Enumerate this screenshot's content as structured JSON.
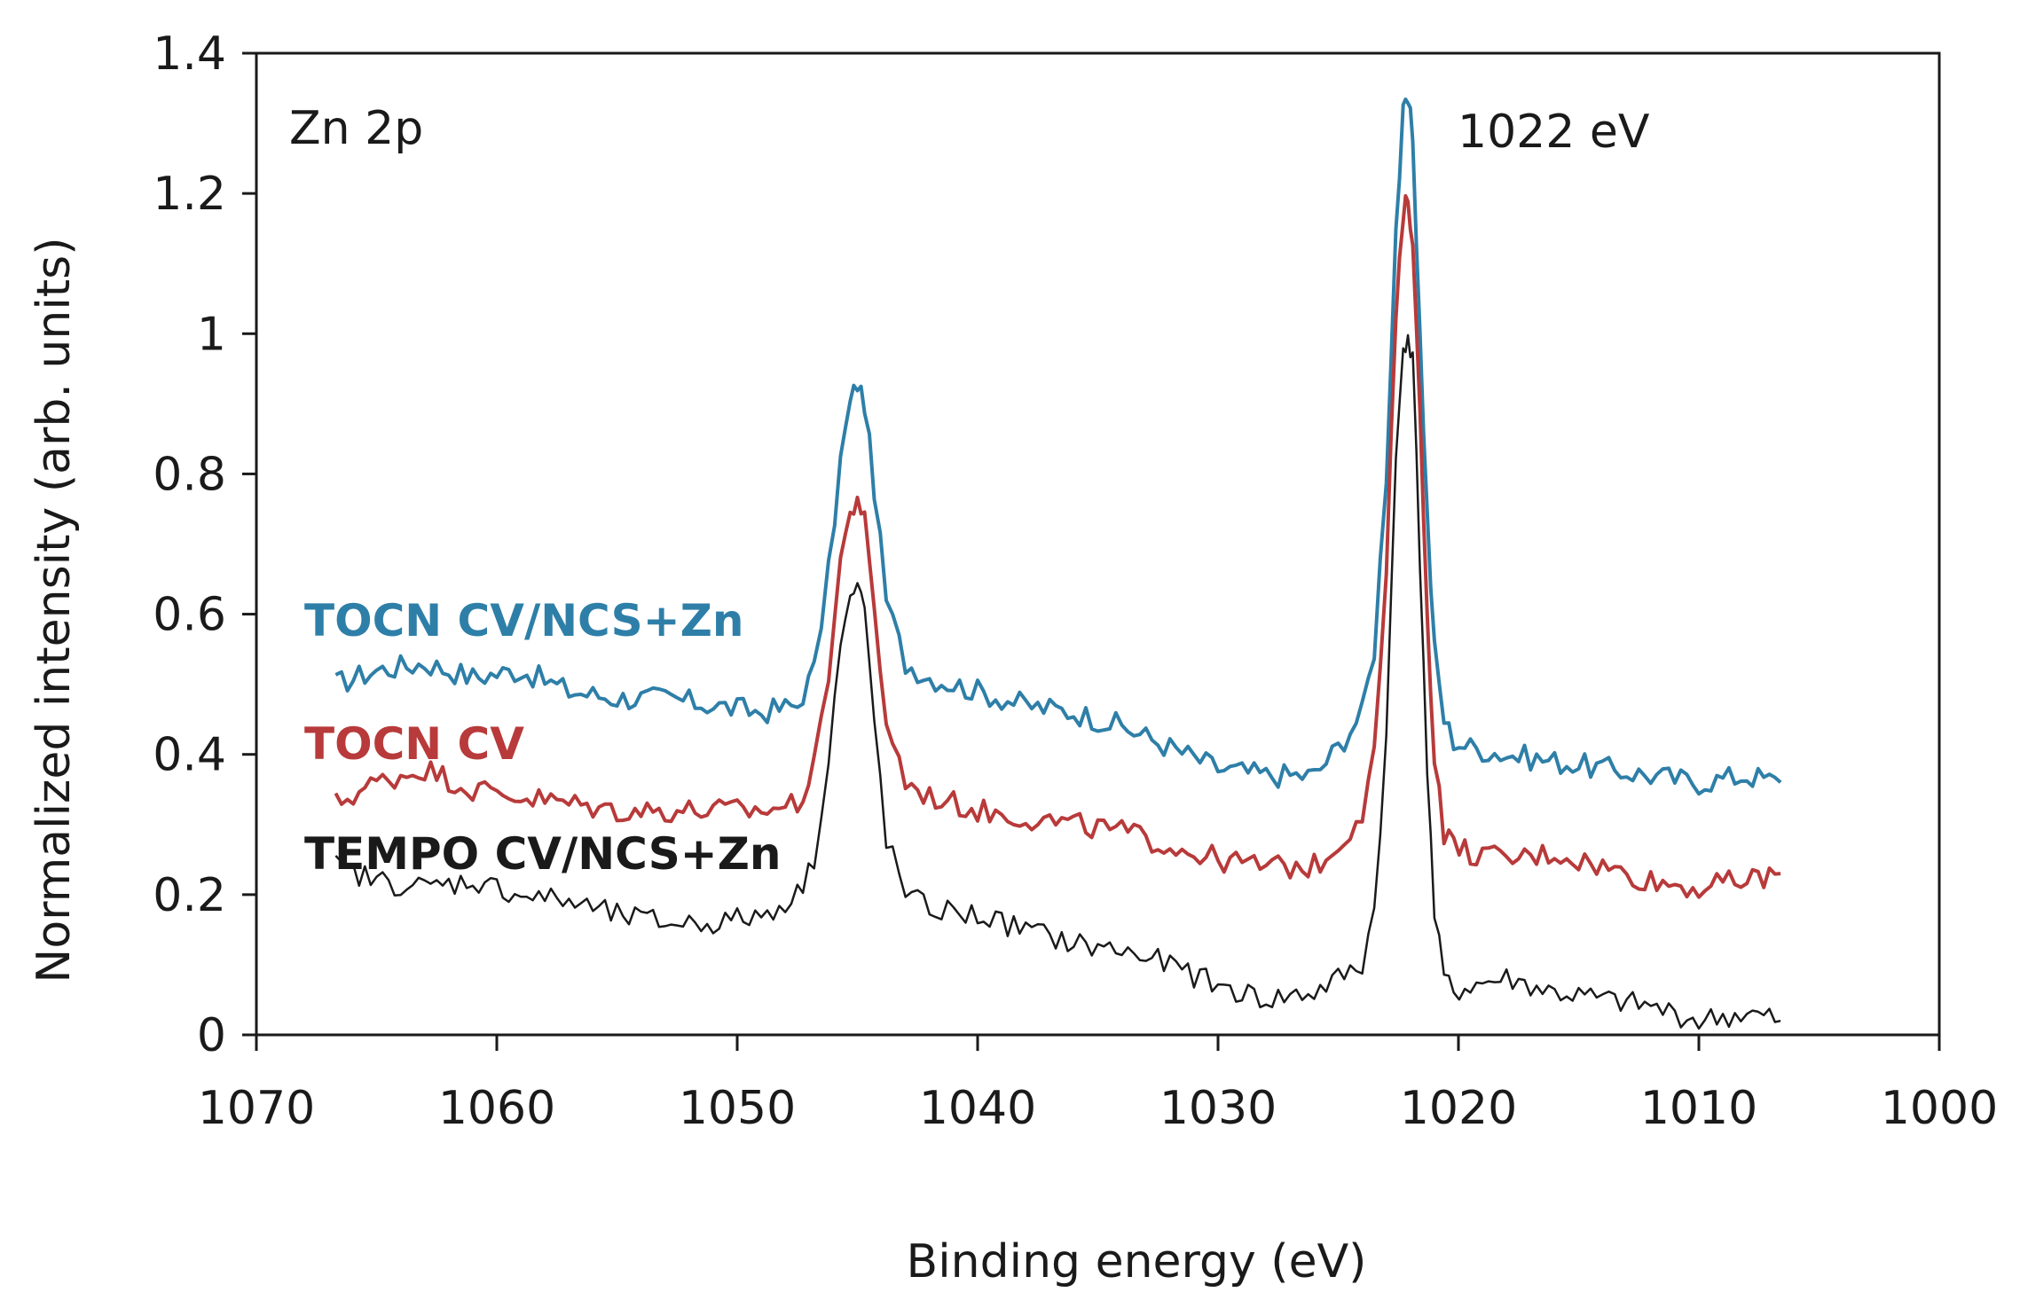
{
  "chart_data": {
    "type": "line",
    "title": "",
    "xlabel": "Binding energy (eV)",
    "ylabel": "Normalized intensity (arb. units)",
    "xlim": [
      1070,
      1000
    ],
    "x_reversed": true,
    "ylim": [
      0,
      1.4
    ],
    "x_ticks": [
      "1070",
      "1060",
      "1050",
      "1040",
      "1030",
      "1020",
      "1010",
      "1000"
    ],
    "y_ticks": [
      "0",
      "0.2",
      "0.4",
      "0.6",
      "0.8",
      "1",
      "1.2",
      "1.4"
    ],
    "grid": false,
    "annotations": {
      "core_level": "Zn 2p",
      "peak": "1022 eV"
    },
    "series": [
      {
        "name": "TOCN CV/NCS+Zn",
        "color": "#2e7fa8",
        "x": [
          1066.7,
          1065,
          1063,
          1061,
          1059,
          1057,
          1055,
          1053,
          1051,
          1049,
          1047.5,
          1046.8,
          1046.2,
          1045.7,
          1045.3,
          1045,
          1044.7,
          1044.3,
          1043.8,
          1043,
          1042,
          1040,
          1038,
          1036,
          1034,
          1032,
          1030,
          1028,
          1026,
          1025,
          1024,
          1023.5,
          1023,
          1022.6,
          1022.3,
          1022.1,
          1021.9,
          1021.6,
          1021.3,
          1021,
          1020.6,
          1020.2,
          1019.5,
          1018,
          1016,
          1014,
          1012,
          1010,
          1008,
          1006.6
        ],
        "y": [
          0.5,
          0.52,
          0.53,
          0.51,
          0.52,
          0.49,
          0.48,
          0.48,
          0.47,
          0.46,
          0.47,
          0.52,
          0.66,
          0.82,
          0.9,
          0.93,
          0.9,
          0.78,
          0.62,
          0.53,
          0.51,
          0.49,
          0.47,
          0.46,
          0.44,
          0.41,
          0.38,
          0.37,
          0.37,
          0.41,
          0.46,
          0.55,
          0.8,
          1.15,
          1.31,
          1.33,
          1.28,
          1.0,
          0.74,
          0.55,
          0.45,
          0.42,
          0.41,
          0.4,
          0.39,
          0.38,
          0.37,
          0.36,
          0.37,
          0.36
        ]
      },
      {
        "name": "TOCN CV",
        "color": "#b83a3a",
        "x": [
          1066.7,
          1065,
          1063,
          1061,
          1059,
          1057,
          1055,
          1053,
          1051,
          1049,
          1047.5,
          1046.8,
          1046.2,
          1045.7,
          1045.3,
          1045,
          1044.7,
          1044.3,
          1043.8,
          1043,
          1042,
          1040,
          1038,
          1036,
          1034,
          1032,
          1030,
          1028,
          1026,
          1025,
          1024,
          1023.5,
          1023,
          1022.6,
          1022.3,
          1022.1,
          1021.9,
          1021.6,
          1021.3,
          1021,
          1020.6,
          1020.2,
          1019.5,
          1018,
          1016,
          1014,
          1012,
          1010,
          1008,
          1006.6
        ],
        "y": [
          0.33,
          0.36,
          0.38,
          0.35,
          0.34,
          0.33,
          0.32,
          0.32,
          0.32,
          0.32,
          0.33,
          0.38,
          0.52,
          0.68,
          0.74,
          0.77,
          0.73,
          0.6,
          0.45,
          0.36,
          0.34,
          0.32,
          0.31,
          0.3,
          0.29,
          0.27,
          0.25,
          0.24,
          0.24,
          0.27,
          0.32,
          0.4,
          0.66,
          1.02,
          1.17,
          1.19,
          1.14,
          0.88,
          0.6,
          0.4,
          0.29,
          0.27,
          0.26,
          0.25,
          0.26,
          0.24,
          0.22,
          0.21,
          0.22,
          0.23
        ]
      },
      {
        "name": "TEMPO CV/NCS+Zn",
        "color": "#1a1a1a",
        "x": [
          1066.7,
          1065,
          1063,
          1061,
          1059,
          1057,
          1055,
          1053,
          1051,
          1049,
          1047.5,
          1046.8,
          1046.2,
          1045.7,
          1045.3,
          1045,
          1044.7,
          1044.3,
          1043.8,
          1043,
          1042,
          1040,
          1038,
          1036,
          1034,
          1032,
          1030,
          1028,
          1026,
          1025,
          1024,
          1023.5,
          1023,
          1022.6,
          1022.3,
          1022.1,
          1021.9,
          1021.6,
          1021.3,
          1021,
          1020.6,
          1020.2,
          1019.5,
          1018,
          1016,
          1014,
          1012,
          1010,
          1008,
          1006.6
        ],
        "y": [
          0.24,
          0.22,
          0.21,
          0.22,
          0.2,
          0.19,
          0.17,
          0.16,
          0.16,
          0.17,
          0.2,
          0.25,
          0.4,
          0.56,
          0.62,
          0.64,
          0.6,
          0.45,
          0.28,
          0.2,
          0.18,
          0.17,
          0.15,
          0.13,
          0.12,
          0.1,
          0.07,
          0.05,
          0.06,
          0.08,
          0.1,
          0.18,
          0.42,
          0.82,
          0.98,
          1.0,
          0.96,
          0.68,
          0.38,
          0.17,
          0.08,
          0.06,
          0.07,
          0.08,
          0.06,
          0.05,
          0.04,
          0.02,
          0.03,
          0.02
        ]
      }
    ]
  }
}
